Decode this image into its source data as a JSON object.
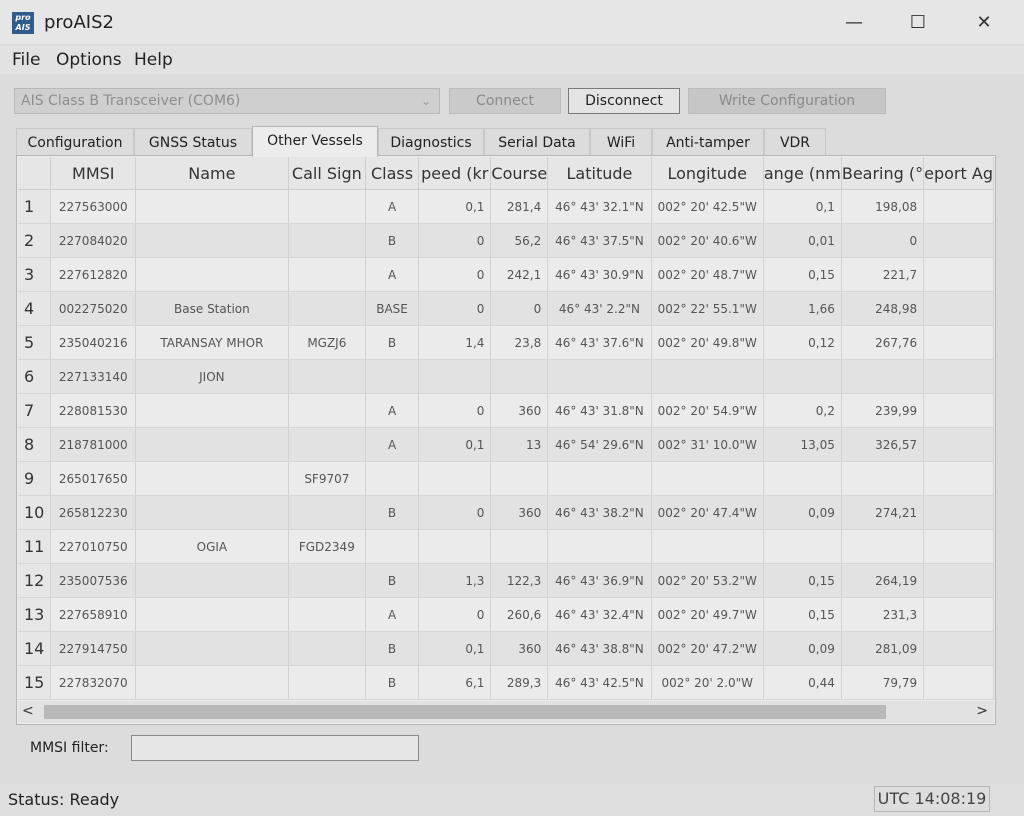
{
  "window": {
    "logo_text": "pro AIS",
    "title": "proAIS2",
    "minimize_glyph": "—",
    "maximize_glyph": "☐",
    "close_glyph": "✕"
  },
  "menu": {
    "file": "File",
    "options": "Options",
    "help": "Help"
  },
  "toolbar": {
    "device_selected": "AIS Class B Transceiver (COM6)",
    "connect_label": "Connect",
    "disconnect_label": "Disconnect",
    "write_config_label": "Write Configuration"
  },
  "tabs": [
    {
      "label": "Configuration"
    },
    {
      "label": "GNSS Status"
    },
    {
      "label": "Other Vessels"
    },
    {
      "label": "Diagnostics"
    },
    {
      "label": "Serial Data"
    },
    {
      "label": "WiFi"
    },
    {
      "label": "Anti-tamper"
    },
    {
      "label": "VDR"
    }
  ],
  "active_tab": "Other Vessels",
  "grid": {
    "columns": [
      "",
      "MMSI",
      "Name",
      "Call Sign",
      "Class",
      "peed (kr",
      "Course",
      "Latitude",
      "Longitude",
      "ange (nm",
      "Bearing (°",
      "eport Ag"
    ],
    "rows": [
      {
        "n": "1",
        "mmsi": "227563000",
        "name": "",
        "call": "",
        "cls": "A",
        "spd": "0,1",
        "crs": "281,4",
        "lat": "46° 43' 32.1\"N",
        "lon": "002° 20' 42.5\"W",
        "rng": "0,1",
        "brg": "198,08",
        "age": ""
      },
      {
        "n": "2",
        "mmsi": "227084020",
        "name": "",
        "call": "",
        "cls": "B",
        "spd": "0",
        "crs": "56,2",
        "lat": "46° 43' 37.5\"N",
        "lon": "002° 20' 40.6\"W",
        "rng": "0,01",
        "brg": "0",
        "age": ""
      },
      {
        "n": "3",
        "mmsi": "227612820",
        "name": "",
        "call": "",
        "cls": "A",
        "spd": "0",
        "crs": "242,1",
        "lat": "46° 43' 30.9\"N",
        "lon": "002° 20' 48.7\"W",
        "rng": "0,15",
        "brg": "221,7",
        "age": ""
      },
      {
        "n": "4",
        "mmsi": "002275020",
        "name": "Base Station",
        "call": "",
        "cls": "BASE",
        "spd": "0",
        "crs": "0",
        "lat": "46° 43' 2.2\"N",
        "lon": "002° 22' 55.1\"W",
        "rng": "1,66",
        "brg": "248,98",
        "age": ""
      },
      {
        "n": "5",
        "mmsi": "235040216",
        "name": "TARANSAY MHOR",
        "call": "MGZJ6",
        "cls": "B",
        "spd": "1,4",
        "crs": "23,8",
        "lat": "46° 43' 37.6\"N",
        "lon": "002° 20' 49.8\"W",
        "rng": "0,12",
        "brg": "267,76",
        "age": ""
      },
      {
        "n": "6",
        "mmsi": "227133140",
        "name": "JION",
        "call": "",
        "cls": "",
        "spd": "",
        "crs": "",
        "lat": "",
        "lon": "",
        "rng": "",
        "brg": "",
        "age": ""
      },
      {
        "n": "7",
        "mmsi": "228081530",
        "name": "",
        "call": "",
        "cls": "A",
        "spd": "0",
        "crs": "360",
        "lat": "46° 43' 31.8\"N",
        "lon": "002° 20' 54.9\"W",
        "rng": "0,2",
        "brg": "239,99",
        "age": ""
      },
      {
        "n": "8",
        "mmsi": "218781000",
        "name": "",
        "call": "",
        "cls": "A",
        "spd": "0,1",
        "crs": "13",
        "lat": "46° 54' 29.6\"N",
        "lon": "002° 31' 10.0\"W",
        "rng": "13,05",
        "brg": "326,57",
        "age": ""
      },
      {
        "n": "9",
        "mmsi": "265017650",
        "name": "",
        "call": "SF9707",
        "cls": "",
        "spd": "",
        "crs": "",
        "lat": "",
        "lon": "",
        "rng": "",
        "brg": "",
        "age": ""
      },
      {
        "n": "10",
        "mmsi": "265812230",
        "name": "",
        "call": "",
        "cls": "B",
        "spd": "0",
        "crs": "360",
        "lat": "46° 43' 38.2\"N",
        "lon": "002° 20' 47.4\"W",
        "rng": "0,09",
        "brg": "274,21",
        "age": ""
      },
      {
        "n": "11",
        "mmsi": "227010750",
        "name": "OGIA",
        "call": "FGD2349",
        "cls": "",
        "spd": "",
        "crs": "",
        "lat": "",
        "lon": "",
        "rng": "",
        "brg": "",
        "age": ""
      },
      {
        "n": "12",
        "mmsi": "235007536",
        "name": "",
        "call": "",
        "cls": "B",
        "spd": "1,3",
        "crs": "122,3",
        "lat": "46° 43' 36.9\"N",
        "lon": "002° 20' 53.2\"W",
        "rng": "0,15",
        "brg": "264,19",
        "age": ""
      },
      {
        "n": "13",
        "mmsi": "227658910",
        "name": "",
        "call": "",
        "cls": "A",
        "spd": "0",
        "crs": "260,6",
        "lat": "46° 43' 32.4\"N",
        "lon": "002° 20' 49.7\"W",
        "rng": "0,15",
        "brg": "231,3",
        "age": ""
      },
      {
        "n": "14",
        "mmsi": "227914750",
        "name": "",
        "call": "",
        "cls": "B",
        "spd": "0,1",
        "crs": "360",
        "lat": "46° 43' 38.8\"N",
        "lon": "002° 20' 47.2\"W",
        "rng": "0,09",
        "brg": "281,09",
        "age": ""
      },
      {
        "n": "15",
        "mmsi": "227832070",
        "name": "",
        "call": "",
        "cls": "B",
        "spd": "6,1",
        "crs": "289,3",
        "lat": "46° 43' 42.5\"N",
        "lon": "002° 20' 2.0\"W",
        "rng": "0,44",
        "brg": "79,79",
        "age": ""
      }
    ]
  },
  "scroll": {
    "left_glyph": "<",
    "right_glyph": ">"
  },
  "filter": {
    "label": "MMSI filter:",
    "value": ""
  },
  "status": {
    "text": "Status: Ready",
    "clock": "UTC  14:08:19"
  }
}
